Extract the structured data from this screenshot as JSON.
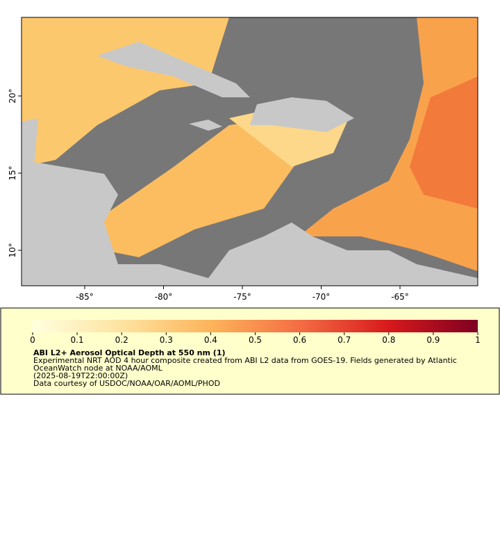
{
  "map": {
    "lon_labels": [
      "-85°",
      "-80°",
      "-75°",
      "-70°",
      "-65°"
    ],
    "lat_labels": [
      "20°",
      "15°",
      "10°"
    ]
  },
  "legend": {
    "scale_labels": [
      "0",
      "0.1",
      "0.2",
      "0.3",
      "0.4",
      "0.5",
      "0.6",
      "0.7",
      "0.8",
      "0.9",
      "1"
    ],
    "title": "ABI L2+ Aerosol Optical Depth at 550 nm (1)",
    "lines": [
      "Experimental NRT AOD 4 hour composite created from ABI L2 data from GOES-19. Fields generated by Atlantic",
      "OceanWatch node at NOAA/AOML",
      "(2025-08-19T22:00:00Z)",
      "Data courtesy of USDOC/NOAA/OAR/AOML/PHOD"
    ]
  }
}
